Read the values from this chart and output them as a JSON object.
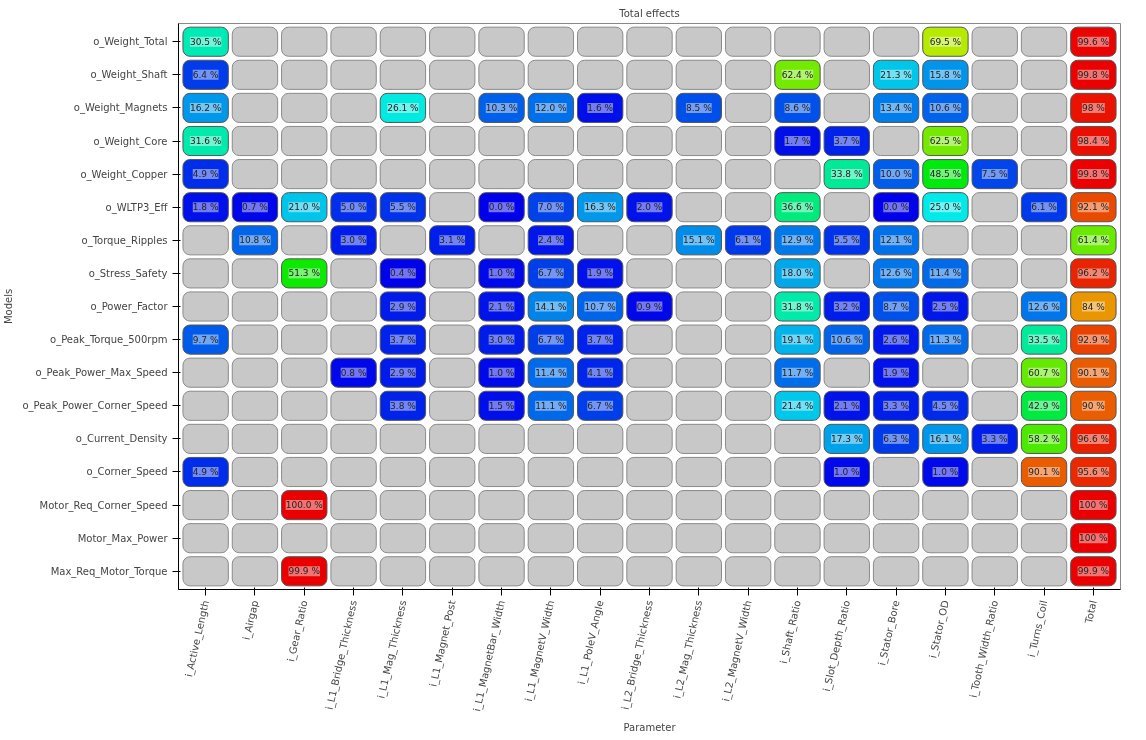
{
  "chart_data": {
    "type": "heatmap",
    "title": "Total effects",
    "xlabel": "Parameter",
    "ylabel": "Models",
    "categories": [
      "i_Active_Length",
      "i_Airgap",
      "i_Gear_Ratio",
      "i_L1_Bridge_Thickness",
      "i_L1_Mag_Thickness",
      "i_L1_Magnet_Post",
      "i_L1_MagnetBar_Width",
      "i_L1_MagnetV_Width",
      "i_L1_PoleV_Angle",
      "i_L2_Bridge_Thickness",
      "i_L2_Mag_Thickness",
      "i_L2_MagnetV_Width",
      "i_Shaft_Ratio",
      "i_Slot_Depth_Ratio",
      "i_Stator_Bore",
      "i_Stator_OD",
      "i_Tooth_Width_Ratio",
      "i_Turns_Coil",
      "Total"
    ],
    "y_categories": [
      "o_Weight_Total",
      "o_Weight_Shaft",
      "o_Weight_Magnets",
      "o_Weight_Core",
      "o_Weight_Copper",
      "o_WLTP3_Eff",
      "o_Torque_Ripples",
      "o_Stress_Safety",
      "o_Power_Factor",
      "o_Peak_Torque_500rpm",
      "o_Peak_Power_Max_Speed",
      "o_Peak_Power_Corner_Speed",
      "o_Current_Density",
      "o_Corner_Speed",
      "Motor_Req_Corner_Speed",
      "Motor_Max_Power",
      "Max_Req_Motor_Torque"
    ],
    "cells": [
      [
        30.5,
        null,
        null,
        null,
        null,
        null,
        null,
        null,
        null,
        null,
        null,
        null,
        null,
        null,
        null,
        69.5,
        null,
        null,
        99.6
      ],
      [
        6.4,
        null,
        null,
        null,
        null,
        null,
        null,
        null,
        null,
        null,
        null,
        null,
        62.4,
        null,
        21.3,
        15.8,
        null,
        null,
        99.8
      ],
      [
        16.2,
        null,
        null,
        null,
        26.1,
        null,
        10.3,
        12.0,
        1.6,
        null,
        8.5,
        null,
        8.6,
        null,
        13.4,
        10.6,
        null,
        null,
        98
      ],
      [
        31.6,
        null,
        null,
        null,
        null,
        null,
        null,
        null,
        null,
        null,
        null,
        null,
        1.7,
        3.7,
        null,
        62.5,
        null,
        null,
        98.4
      ],
      [
        4.9,
        null,
        null,
        null,
        null,
        null,
        null,
        null,
        null,
        null,
        null,
        null,
        null,
        33.8,
        10.0,
        48.5,
        7.5,
        null,
        99.8
      ],
      [
        1.8,
        0.7,
        21.0,
        5.0,
        5.5,
        null,
        0.0,
        7.0,
        16.3,
        2.0,
        null,
        null,
        36.6,
        null,
        0.0,
        25.0,
        null,
        6.1,
        92.1
      ],
      [
        null,
        10.8,
        null,
        3.0,
        null,
        3.1,
        null,
        2.4,
        null,
        null,
        15.1,
        6.1,
        12.9,
        5.5,
        12.1,
        null,
        null,
        null,
        61.4
      ],
      [
        null,
        null,
        51.3,
        null,
        0.4,
        null,
        1.0,
        6.7,
        1.9,
        null,
        null,
        null,
        18.0,
        null,
        12.6,
        11.4,
        null,
        null,
        96.2
      ],
      [
        null,
        null,
        null,
        null,
        2.9,
        null,
        2.1,
        14.1,
        10.7,
        0.9,
        null,
        null,
        31.8,
        3.2,
        8.7,
        2.5,
        null,
        12.6,
        84
      ],
      [
        9.7,
        null,
        null,
        null,
        3.7,
        null,
        3.0,
        6.7,
        3.7,
        null,
        null,
        null,
        19.1,
        10.6,
        2.6,
        11.3,
        null,
        33.5,
        92.9
      ],
      [
        null,
        null,
        null,
        0.8,
        2.9,
        null,
        1.0,
        11.4,
        4.1,
        null,
        null,
        null,
        11.7,
        null,
        1.9,
        null,
        null,
        60.7,
        90.1
      ],
      [
        null,
        null,
        null,
        null,
        3.8,
        null,
        1.5,
        11.1,
        6.7,
        null,
        null,
        null,
        21.4,
        2.1,
        3.3,
        4.5,
        null,
        42.9,
        90
      ],
      [
        null,
        null,
        null,
        null,
        null,
        null,
        null,
        null,
        null,
        null,
        null,
        null,
        null,
        17.3,
        6.3,
        16.1,
        3.3,
        58.2,
        96.6
      ],
      [
        4.9,
        null,
        null,
        null,
        null,
        null,
        null,
        null,
        null,
        null,
        null,
        null,
        null,
        1.0,
        null,
        1.0,
        null,
        90.1,
        95.6
      ],
      [
        null,
        null,
        100.0,
        null,
        null,
        null,
        null,
        null,
        null,
        null,
        null,
        null,
        null,
        null,
        null,
        null,
        null,
        null,
        100
      ],
      [
        null,
        null,
        null,
        null,
        null,
        null,
        null,
        null,
        null,
        null,
        null,
        null,
        null,
        null,
        null,
        null,
        null,
        null,
        100
      ],
      [
        null,
        null,
        99.9,
        null,
        null,
        null,
        null,
        null,
        null,
        null,
        null,
        null,
        null,
        null,
        null,
        null,
        null,
        null,
        99.9
      ]
    ],
    "cell_labels": [
      [
        "30.5 %",
        null,
        null,
        null,
        null,
        null,
        null,
        null,
        null,
        null,
        null,
        null,
        null,
        null,
        null,
        "69.5 %",
        null,
        null,
        "99.6 %"
      ],
      [
        "6.4 %",
        null,
        null,
        null,
        null,
        null,
        null,
        null,
        null,
        null,
        null,
        null,
        "62.4 %",
        null,
        "21.3 %",
        "15.8 %",
        null,
        null,
        "99.8 %"
      ],
      [
        "16.2 %",
        null,
        null,
        null,
        "26.1 %",
        null,
        "10.3 %",
        "12.0 %",
        "1.6 %",
        null,
        "8.5 %",
        null,
        "8.6 %",
        null,
        "13.4 %",
        "10.6 %",
        null,
        null,
        "98 %"
      ],
      [
        "31.6 %",
        null,
        null,
        null,
        null,
        null,
        null,
        null,
        null,
        null,
        null,
        null,
        "1.7 %",
        "3.7 %",
        null,
        "62.5 %",
        null,
        null,
        "98.4 %"
      ],
      [
        "4.9 %",
        null,
        null,
        null,
        null,
        null,
        null,
        null,
        null,
        null,
        null,
        null,
        null,
        "33.8 %",
        "10.0 %",
        "48.5 %",
        "7.5 %",
        null,
        "99.8 %"
      ],
      [
        "1.8 %",
        "0.7 %",
        "21.0 %",
        "5.0 %",
        "5.5 %",
        null,
        "0.0 %",
        "7.0 %",
        "16.3 %",
        "2.0 %",
        null,
        null,
        "36.6 %",
        null,
        "0.0 %",
        "25.0 %",
        null,
        "6.1 %",
        "92.1 %"
      ],
      [
        null,
        "10.8 %",
        null,
        "3.0 %",
        null,
        "3.1 %",
        null,
        "2.4 %",
        null,
        null,
        "15.1 %",
        "6.1 %",
        "12.9 %",
        "5.5 %",
        "12.1 %",
        null,
        null,
        null,
        "61.4 %"
      ],
      [
        null,
        null,
        "51.3 %",
        null,
        "0.4 %",
        null,
        "1.0 %",
        "6.7 %",
        "1.9 %",
        null,
        null,
        null,
        "18.0 %",
        null,
        "12.6 %",
        "11.4 %",
        null,
        null,
        "96.2 %"
      ],
      [
        null,
        null,
        null,
        null,
        "2.9 %",
        null,
        "2.1 %",
        "14.1 %",
        "10.7 %",
        "0.9 %",
        null,
        null,
        "31.8 %",
        "3.2 %",
        "8.7 %",
        "2.5 %",
        null,
        "12.6 %",
        "84 %"
      ],
      [
        "9.7 %",
        null,
        null,
        null,
        "3.7 %",
        null,
        "3.0 %",
        "6.7 %",
        "3.7 %",
        null,
        null,
        null,
        "19.1 %",
        "10.6 %",
        "2.6 %",
        "11.3 %",
        null,
        "33.5 %",
        "92.9 %"
      ],
      [
        null,
        null,
        null,
        "0.8 %",
        "2.9 %",
        null,
        "1.0 %",
        "11.4 %",
        "4.1 %",
        null,
        null,
        null,
        "11.7 %",
        null,
        "1.9 %",
        null,
        null,
        "60.7 %",
        "90.1 %"
      ],
      [
        null,
        null,
        null,
        null,
        "3.8 %",
        null,
        "1.5 %",
        "11.1 %",
        "6.7 %",
        null,
        null,
        null,
        "21.4 %",
        "2.1 %",
        "3.3 %",
        "4.5 %",
        null,
        "42.9 %",
        "90 %"
      ],
      [
        null,
        null,
        null,
        null,
        null,
        null,
        null,
        null,
        null,
        null,
        null,
        null,
        null,
        "17.3 %",
        "6.3 %",
        "16.1 %",
        "3.3 %",
        "58.2 %",
        "96.6 %"
      ],
      [
        "4.9 %",
        null,
        null,
        null,
        null,
        null,
        null,
        null,
        null,
        null,
        null,
        null,
        null,
        "1.0 %",
        null,
        "1.0 %",
        null,
        "90.1 %",
        "95.6 %"
      ],
      [
        null,
        null,
        "100.0 %",
        null,
        null,
        null,
        null,
        null,
        null,
        null,
        null,
        null,
        null,
        null,
        null,
        null,
        null,
        null,
        "100 %"
      ],
      [
        null,
        null,
        null,
        null,
        null,
        null,
        null,
        null,
        null,
        null,
        null,
        null,
        null,
        null,
        null,
        null,
        null,
        null,
        "100 %"
      ],
      [
        null,
        null,
        "99.9 %",
        null,
        null,
        null,
        null,
        null,
        null,
        null,
        null,
        null,
        null,
        null,
        null,
        null,
        null,
        null,
        "99.9 %"
      ]
    ]
  }
}
